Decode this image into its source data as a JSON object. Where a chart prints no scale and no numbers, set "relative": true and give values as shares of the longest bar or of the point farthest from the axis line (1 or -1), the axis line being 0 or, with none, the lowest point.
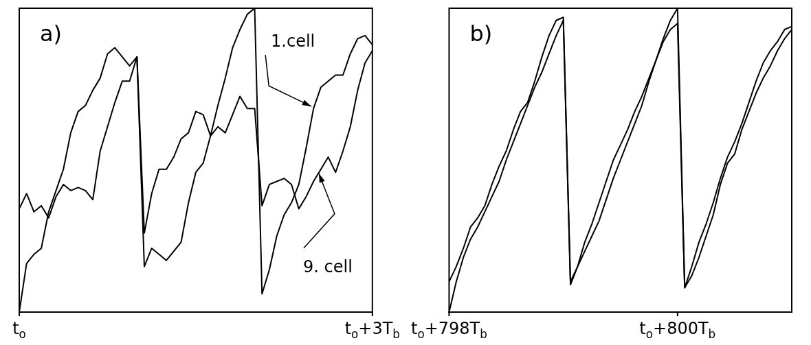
{
  "chart_data": [
    {
      "type": "line",
      "title": "a)",
      "relative": true,
      "grid": false,
      "legend": false,
      "marker": "none",
      "line_style": "solid",
      "categories": [
        "t$_{o}$",
        null,
        null,
        null,
        null,
        null,
        null,
        null,
        null,
        null,
        null,
        null,
        null,
        null,
        null,
        null,
        null,
        null,
        null,
        null,
        null,
        null,
        null,
        null,
        null,
        null,
        null,
        null,
        null,
        null,
        null,
        null,
        null,
        null,
        null,
        null,
        null,
        null,
        null,
        null,
        null,
        null,
        null,
        null,
        null,
        null,
        null,
        null,
        "t$_{o}$+3T$_{b}$"
      ],
      "series": [
        {
          "name": "1.cell",
          "color": "#000000",
          "values": [
            0,
            0.16,
            0.19,
            0.21,
            0.33,
            0.4,
            0.47,
            0.59,
            0.66,
            0.68,
            0.73,
            0.77,
            0.85,
            0.87,
            0.84,
            0.81,
            0.84,
            0.15,
            0.21,
            0.19,
            0.17,
            0.2,
            0.23,
            0.36,
            0.46,
            0.49,
            0.58,
            0.68,
            0.77,
            0.87,
            0.93,
            0.98,
            1.0,
            0.06,
            0.14,
            0.25,
            0.32,
            0.36,
            0.42,
            0.54,
            0.67,
            0.74,
            0.76,
            0.78,
            0.78,
            0.85,
            0.9,
            0.91,
            0.88
          ]
        },
        {
          "name": "9. cell",
          "color": "#000000",
          "values": [
            0.34,
            0.39,
            0.33,
            0.35,
            0.31,
            0.38,
            0.42,
            0.4,
            0.41,
            0.4,
            0.37,
            0.53,
            0.61,
            0.69,
            0.76,
            0.76,
            0.84,
            0.26,
            0.39,
            0.47,
            0.47,
            0.51,
            0.57,
            0.59,
            0.66,
            0.65,
            0.58,
            0.61,
            0.59,
            0.65,
            0.71,
            0.67,
            0.67,
            0.35,
            0.42,
            0.43,
            0.44,
            0.42,
            0.34,
            0.38,
            0.43,
            0.47,
            0.51,
            0.46,
            0.53,
            0.61,
            0.73,
            0.82,
            0.86
          ]
        }
      ]
    },
    {
      "type": "line",
      "title": "b)",
      "relative": true,
      "grid": false,
      "legend": false,
      "marker": "none",
      "line_style": "solid",
      "categories": [
        "t$_{o}$+798T$_{b}$",
        null,
        null,
        null,
        null,
        null,
        null,
        null,
        null,
        null,
        null,
        null,
        null,
        null,
        null,
        null,
        null,
        null,
        null,
        null,
        null,
        null,
        null,
        null,
        null,
        null,
        null,
        null,
        null,
        null,
        null,
        null,
        "t$_{o}$+800T$_{b}$",
        null,
        null,
        null,
        null,
        null,
        null,
        null,
        null,
        null,
        null,
        null,
        null,
        null,
        null,
        null,
        null
      ],
      "series": [
        {
          "color": "#000000",
          "values": [
            0.1,
            0.15,
            0.21,
            0.28,
            0.31,
            0.35,
            0.42,
            0.48,
            0.53,
            0.6,
            0.66,
            0.69,
            0.76,
            0.84,
            0.91,
            0.96,
            0.97,
            0.1,
            0.15,
            0.23,
            0.29,
            0.36,
            0.43,
            0.5,
            0.55,
            0.6,
            0.66,
            0.71,
            0.77,
            0.83,
            0.9,
            0.96,
            1.0,
            0.08,
            0.15,
            0.23,
            0.29,
            0.36,
            0.44,
            0.51,
            0.56,
            0.62,
            0.69,
            0.76,
            0.82,
            0.86,
            0.89,
            0.93,
            0.94
          ]
        },
        {
          "color": "#000000",
          "values": [
            0,
            0.1,
            0.18,
            0.24,
            0.28,
            0.33,
            0.38,
            0.43,
            0.5,
            0.56,
            0.62,
            0.68,
            0.74,
            0.79,
            0.85,
            0.91,
            0.96,
            0.09,
            0.15,
            0.2,
            0.25,
            0.3,
            0.37,
            0.44,
            0.5,
            0.56,
            0.62,
            0.68,
            0.76,
            0.83,
            0.89,
            0.93,
            0.95,
            0.08,
            0.12,
            0.18,
            0.25,
            0.32,
            0.42,
            0.49,
            0.52,
            0.6,
            0.66,
            0.72,
            0.77,
            0.81,
            0.86,
            0.9,
            0.93
          ]
        }
      ]
    }
  ]
}
